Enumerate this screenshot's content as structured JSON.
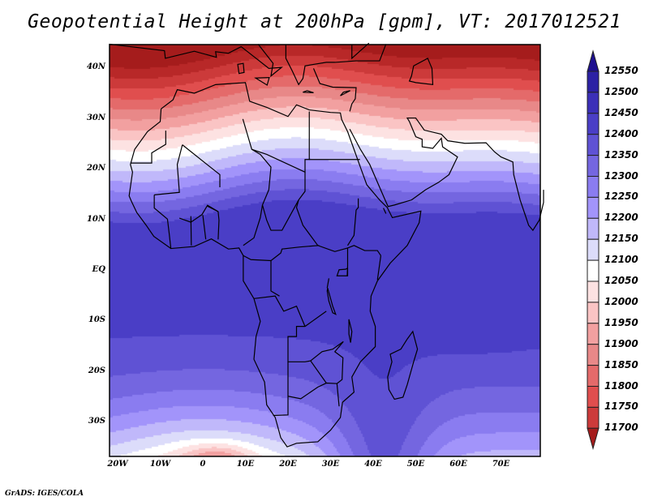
{
  "title": "Geopotential Height at 200hPa [gpm], VT: 2017012521",
  "lat_ticks": [
    "40N",
    "30N",
    "20N",
    "10N",
    "EQ",
    "10S",
    "20S",
    "30S"
  ],
  "lon_ticks": [
    "20W",
    "10W",
    "0",
    "10E",
    "20E",
    "30E",
    "40E",
    "50E",
    "60E",
    "70E"
  ],
  "colorbar": {
    "labels": [
      "12550",
      "12500",
      "12450",
      "12400",
      "12350",
      "12300",
      "12250",
      "12200",
      "12150",
      "12100",
      "12050",
      "12000",
      "11950",
      "11900",
      "11850",
      "11800",
      "11750",
      "11700"
    ],
    "colors_low_to_high": [
      "#a51c1c",
      "#b82828",
      "#cc3a3a",
      "#e04e4e",
      "#e46a6a",
      "#e88888",
      "#f2a0a0",
      "#fac4c4",
      "#fde2e2",
      "#ffffff",
      "#dcdcfa",
      "#c0b8fa",
      "#a294fa",
      "#8a7cf0",
      "#7466e0",
      "#5f52d4",
      "#4a3ec6",
      "#3b2fb8",
      "#2c21a4",
      "#1e1090"
    ]
  },
  "footer": "GrADS: IGES/COLA"
}
